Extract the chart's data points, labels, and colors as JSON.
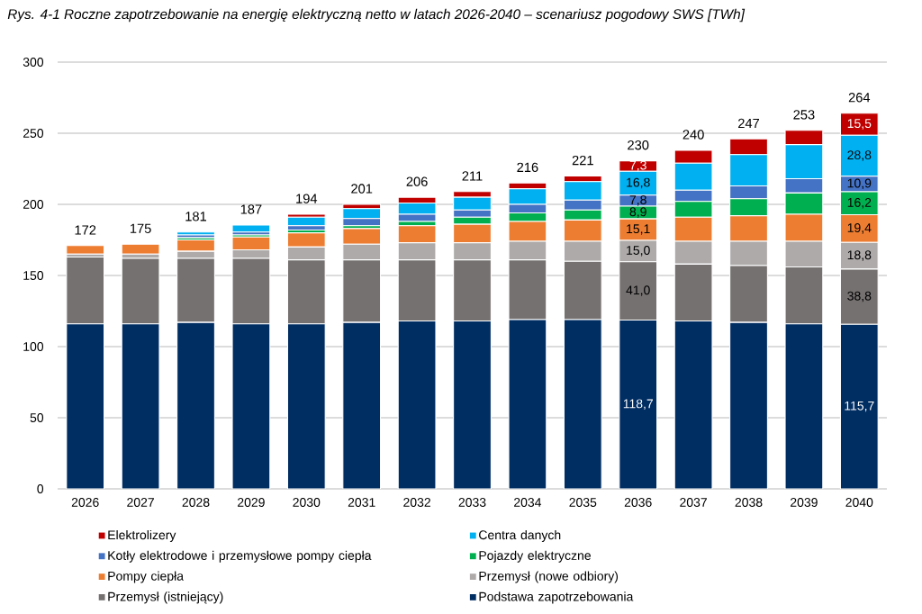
{
  "chart_data": {
    "type": "bar",
    "stacked": true,
    "title": "Rys. 4-1 Roczne zapotrzebowanie na energię elektryczną netto w latach 2026-2040 – scenariusz pogodowy SWS [TWh]",
    "categories": [
      "2026",
      "2027",
      "2028",
      "2029",
      "2030",
      "2031",
      "2032",
      "2033",
      "2034",
      "2035",
      "2036",
      "2037",
      "2038",
      "2039",
      "2040"
    ],
    "ylim": [
      0,
      300
    ],
    "yticks": [
      0,
      50,
      100,
      150,
      200,
      250,
      300
    ],
    "grid": "y",
    "legend": "bottom",
    "totals": [
      "172",
      "175",
      "181",
      "187",
      "194",
      "201",
      "206",
      "211",
      "216",
      "221",
      "230",
      "240",
      "247",
      "253",
      "264"
    ],
    "series": [
      {
        "name": "Podstawa zapotrzebowania",
        "color": "#002d62",
        "values": [
          116,
          116,
          117,
          116,
          116,
          117,
          118,
          118,
          119,
          119,
          118.7,
          118,
          117,
          116,
          115.7
        ],
        "value_labels": [
          null,
          null,
          null,
          null,
          null,
          null,
          null,
          null,
          null,
          null,
          "118,7",
          null,
          null,
          null,
          "115,7"
        ]
      },
      {
        "name": "Przemysł (istniejący)",
        "color": "#767171",
        "values": [
          47,
          46,
          45,
          46,
          45,
          44,
          43,
          43,
          42,
          41,
          41.0,
          40,
          40,
          40,
          38.8
        ],
        "value_labels": [
          null,
          null,
          null,
          null,
          null,
          null,
          null,
          null,
          null,
          null,
          "41,0",
          null,
          null,
          null,
          "38,8"
        ]
      },
      {
        "name": "Przemysł (nowe odbiory)",
        "color": "#aeaaaa",
        "values": [
          2,
          3,
          5,
          6,
          9,
          11,
          12,
          12,
          13,
          14,
          15.0,
          16,
          17,
          18,
          18.8
        ],
        "value_labels": [
          null,
          null,
          null,
          null,
          null,
          null,
          null,
          null,
          null,
          null,
          "15,0",
          null,
          null,
          null,
          "18,8"
        ]
      },
      {
        "name": "Pompy ciepła",
        "color": "#ed7d31",
        "values": [
          6,
          7,
          8,
          9,
          10,
          11,
          12,
          13,
          14,
          15,
          15.1,
          17,
          18,
          19,
          19.4
        ],
        "value_labels": [
          null,
          null,
          null,
          null,
          null,
          null,
          null,
          null,
          null,
          null,
          "15,1",
          null,
          null,
          null,
          "19,4"
        ]
      },
      {
        "name": "Pojazdy elektryczne",
        "color": "#00b050",
        "values": [
          0,
          0,
          1.5,
          1.5,
          2,
          2,
          3,
          5,
          6,
          7,
          8.9,
          11,
          12,
          15,
          16.2
        ],
        "value_labels": [
          null,
          null,
          null,
          null,
          null,
          null,
          null,
          null,
          null,
          null,
          "8,9",
          null,
          null,
          null,
          "16,2"
        ]
      },
      {
        "name": "Kotły elektrodowe i przemysłowe pompy ciepła",
        "color": "#4472c4",
        "values": [
          0,
          0,
          2,
          2,
          3,
          5,
          5,
          5,
          6,
          7,
          7.8,
          8,
          9,
          10,
          10.9
        ],
        "value_labels": [
          null,
          null,
          null,
          null,
          null,
          null,
          null,
          null,
          null,
          null,
          "7,8",
          null,
          null,
          null,
          "10,9"
        ]
      },
      {
        "name": "Centra danych",
        "color": "#00b0f0",
        "values": [
          0,
          0,
          2,
          5,
          6,
          7,
          8,
          9,
          11,
          13,
          16.8,
          19,
          22,
          24,
          28.8
        ],
        "value_labels": [
          null,
          null,
          null,
          null,
          null,
          null,
          null,
          null,
          null,
          null,
          "16,8",
          null,
          null,
          null,
          "28,8"
        ]
      },
      {
        "name": "Elektrolizery",
        "color": "#c00000",
        "values": [
          0,
          0,
          0,
          0,
          2,
          3,
          4,
          4,
          4,
          4,
          7.3,
          9,
          11,
          10,
          15.5
        ],
        "value_labels": [
          null,
          null,
          null,
          null,
          null,
          null,
          null,
          null,
          null,
          null,
          "7,3",
          null,
          null,
          null,
          "15,5"
        ]
      }
    ]
  }
}
